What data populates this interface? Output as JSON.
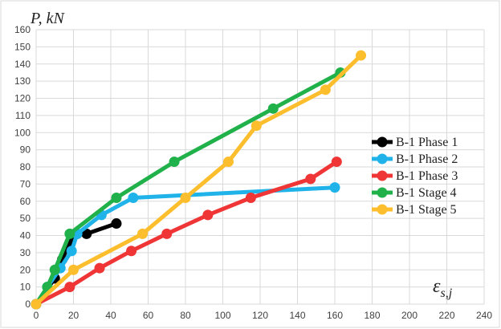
{
  "chart_data": {
    "type": "line",
    "ylabel": "P, kN",
    "xlabel": "ε_s,j",
    "xlim": [
      0,
      240
    ],
    "ylim": [
      0,
      160
    ],
    "xticks": [
      0,
      20,
      40,
      60,
      80,
      100,
      120,
      140,
      160,
      180,
      200,
      220,
      240
    ],
    "yticks": [
      0,
      10,
      20,
      30,
      40,
      50,
      60,
      70,
      80,
      90,
      100,
      110,
      120,
      130,
      140,
      150,
      160
    ],
    "grid": true,
    "legend_position": "right",
    "series": [
      {
        "name": "B-1 Phase 1",
        "color": "#000000",
        "x": [
          0,
          10,
          14,
          18,
          22,
          27,
          43
        ],
        "y": [
          0,
          15,
          26,
          36,
          41,
          41,
          47
        ]
      },
      {
        "name": "B-1 Phase 2",
        "color": "#1fb3ea",
        "x": [
          0,
          6,
          13,
          19,
          22,
          35,
          52,
          160
        ],
        "y": [
          0,
          10,
          21,
          31,
          41,
          52,
          62,
          68
        ]
      },
      {
        "name": "B-1 Phase 3",
        "color": "#ef3535",
        "x": [
          0,
          18,
          34,
          51,
          70,
          92,
          115,
          147,
          161
        ],
        "y": [
          0,
          10,
          21,
          31,
          41,
          52,
          62,
          73,
          83
        ]
      },
      {
        "name": "B-1 Stage 4",
        "color": "#21b14b",
        "x": [
          0,
          6,
          10,
          18,
          43,
          74,
          127,
          163
        ],
        "y": [
          0,
          10,
          20,
          41,
          62,
          83,
          114,
          135
        ]
      },
      {
        "name": "B-1 Stage 5",
        "color": "#fcbe2c",
        "x": [
          0,
          20,
          57,
          80,
          103,
          118,
          155,
          174
        ],
        "y": [
          0,
          20,
          41,
          62,
          83,
          104,
          125,
          145
        ]
      }
    ]
  }
}
